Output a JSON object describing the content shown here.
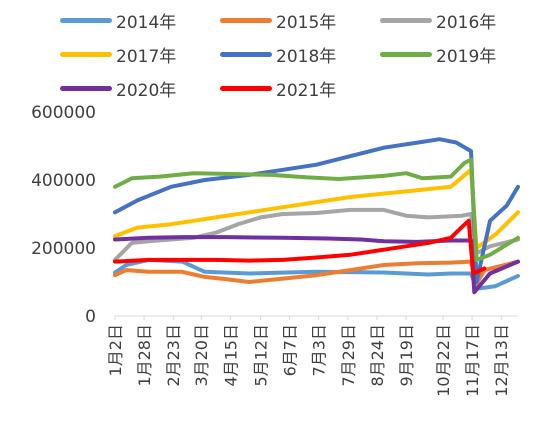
{
  "chart_data": {
    "type": "line",
    "title": "",
    "xlabel": "",
    "ylabel": "",
    "ylim": [
      0,
      600000
    ],
    "yticks": [
      "600000",
      "400000",
      "200000",
      "0"
    ],
    "xticks": [
      "1月2日",
      "1月28日",
      "2月23日",
      "3月20日",
      "4月15日",
      "5月12日",
      "6月7日",
      "7月3日",
      "7月29日",
      "8月24日",
      "9月19日",
      "10月22日",
      "11月17日",
      "12月13日"
    ],
    "x_domain": [
      0,
      360
    ],
    "x_tick_days": [
      0,
      26,
      52,
      77,
      103,
      130,
      156,
      182,
      208,
      234,
      260,
      293,
      319,
      345
    ],
    "legend_position": "top",
    "grid": false,
    "series": [
      {
        "name": "2014年",
        "color": "#5B9BD5",
        "points": [
          [
            0,
            128000
          ],
          [
            10,
            150000
          ],
          [
            30,
            165000
          ],
          [
            60,
            160000
          ],
          [
            80,
            130000
          ],
          [
            120,
            125000
          ],
          [
            180,
            130000
          ],
          [
            240,
            128000
          ],
          [
            280,
            122000
          ],
          [
            300,
            125000
          ],
          [
            318,
            125000
          ],
          [
            323,
            80000
          ],
          [
            340,
            88000
          ],
          [
            360,
            118000
          ]
        ]
      },
      {
        "name": "2015年",
        "color": "#ED7D31",
        "points": [
          [
            0,
            120000
          ],
          [
            10,
            135000
          ],
          [
            30,
            130000
          ],
          [
            60,
            130000
          ],
          [
            80,
            115000
          ],
          [
            100,
            108000
          ],
          [
            120,
            100000
          ],
          [
            150,
            110000
          ],
          [
            180,
            120000
          ],
          [
            210,
            135000
          ],
          [
            240,
            150000
          ],
          [
            270,
            155000
          ],
          [
            300,
            157000
          ],
          [
            318,
            160000
          ],
          [
            323,
            95000
          ],
          [
            330,
            135000
          ],
          [
            360,
            160000
          ]
        ]
      },
      {
        "name": "2016年",
        "color": "#A5A5A5",
        "points": [
          [
            0,
            165000
          ],
          [
            15,
            215000
          ],
          [
            30,
            220000
          ],
          [
            50,
            225000
          ],
          [
            70,
            230000
          ],
          [
            90,
            245000
          ],
          [
            110,
            270000
          ],
          [
            130,
            290000
          ],
          [
            150,
            300000
          ],
          [
            180,
            303000
          ],
          [
            210,
            312000
          ],
          [
            240,
            312000
          ],
          [
            260,
            295000
          ],
          [
            280,
            290000
          ],
          [
            310,
            295000
          ],
          [
            318,
            300000
          ],
          [
            323,
            185000
          ],
          [
            335,
            205000
          ],
          [
            360,
            225000
          ]
        ]
      },
      {
        "name": "2017年",
        "color": "#FFC000",
        "points": [
          [
            0,
            235000
          ],
          [
            20,
            260000
          ],
          [
            50,
            270000
          ],
          [
            70,
            280000
          ],
          [
            90,
            290000
          ],
          [
            120,
            305000
          ],
          [
            150,
            320000
          ],
          [
            180,
            335000
          ],
          [
            210,
            350000
          ],
          [
            240,
            360000
          ],
          [
            270,
            370000
          ],
          [
            300,
            380000
          ],
          [
            318,
            430000
          ],
          [
            323,
            200000
          ],
          [
            340,
            240000
          ],
          [
            360,
            305000
          ]
        ]
      },
      {
        "name": "2018年",
        "color": "#4472C4",
        "points": [
          [
            0,
            305000
          ],
          [
            20,
            340000
          ],
          [
            50,
            380000
          ],
          [
            80,
            400000
          ],
          [
            120,
            415000
          ],
          [
            150,
            430000
          ],
          [
            180,
            445000
          ],
          [
            210,
            470000
          ],
          [
            240,
            495000
          ],
          [
            270,
            510000
          ],
          [
            290,
            520000
          ],
          [
            305,
            510000
          ],
          [
            318,
            485000
          ],
          [
            323,
            100000
          ],
          [
            335,
            280000
          ],
          [
            350,
            325000
          ],
          [
            360,
            380000
          ]
        ]
      },
      {
        "name": "2019年",
        "color": "#70AD47",
        "points": [
          [
            0,
            380000
          ],
          [
            15,
            405000
          ],
          [
            40,
            410000
          ],
          [
            70,
            420000
          ],
          [
            100,
            418000
          ],
          [
            140,
            415000
          ],
          [
            170,
            408000
          ],
          [
            200,
            403000
          ],
          [
            240,
            412000
          ],
          [
            260,
            420000
          ],
          [
            275,
            405000
          ],
          [
            300,
            410000
          ],
          [
            312,
            450000
          ],
          [
            318,
            460000
          ],
          [
            323,
            165000
          ],
          [
            335,
            180000
          ],
          [
            360,
            230000
          ]
        ]
      },
      {
        "name": "2020年",
        "color": "#7030A0",
        "points": [
          [
            0,
            225000
          ],
          [
            30,
            230000
          ],
          [
            60,
            232000
          ],
          [
            100,
            232000
          ],
          [
            150,
            230000
          ],
          [
            190,
            228000
          ],
          [
            220,
            225000
          ],
          [
            240,
            220000
          ],
          [
            270,
            218000
          ],
          [
            300,
            222000
          ],
          [
            318,
            222000
          ],
          [
            321,
            70000
          ],
          [
            335,
            125000
          ],
          [
            360,
            160000
          ]
        ]
      },
      {
        "name": "2021年",
        "color": "#FF0000",
        "points": [
          [
            0,
            160000
          ],
          [
            30,
            165000
          ],
          [
            60,
            165000
          ],
          [
            90,
            165000
          ],
          [
            120,
            163000
          ],
          [
            150,
            165000
          ],
          [
            180,
            172000
          ],
          [
            210,
            180000
          ],
          [
            240,
            195000
          ],
          [
            260,
            205000
          ],
          [
            280,
            215000
          ],
          [
            300,
            230000
          ],
          [
            310,
            262000
          ],
          [
            316,
            280000
          ],
          [
            320,
            125000
          ],
          [
            330,
            140000
          ]
        ]
      }
    ]
  },
  "legend": {
    "items": [
      "2014年",
      "2015年",
      "2016年",
      "2017年",
      "2018年",
      "2019年",
      "2020年",
      "2021年"
    ]
  }
}
